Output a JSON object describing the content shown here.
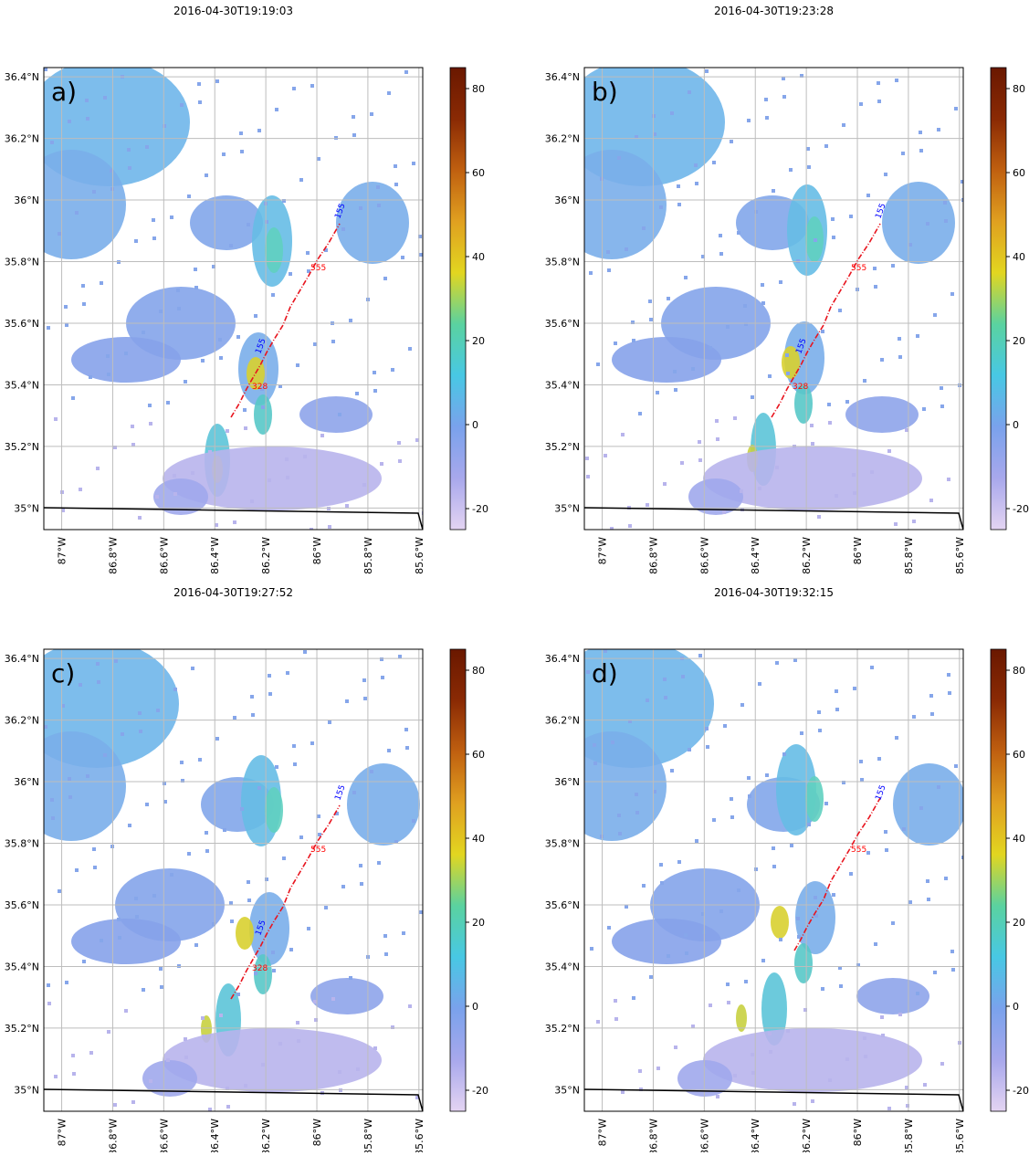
{
  "panels": [
    {
      "title": "2016-04-30T19:19:03",
      "label": "a)",
      "annotations": [
        {
          "text": "155",
          "color": "#0000ff"
        },
        {
          "text": "555",
          "color": "#ff0000"
        },
        {
          "text": "155",
          "color": "#0000ff"
        },
        {
          "text": "328",
          "color": "#ff0000"
        }
      ]
    },
    {
      "title": "2016-04-30T19:23:28",
      "label": "b)",
      "annotations": [
        {
          "text": "155",
          "color": "#0000ff"
        },
        {
          "text": "555",
          "color": "#ff0000"
        },
        {
          "text": "155",
          "color": "#0000ff"
        },
        {
          "text": "328",
          "color": "#ff0000"
        }
      ]
    },
    {
      "title": "2016-04-30T19:27:52",
      "label": "c)",
      "annotations": [
        {
          "text": "155",
          "color": "#0000ff"
        },
        {
          "text": "555",
          "color": "#ff0000"
        },
        {
          "text": "155",
          "color": "#0000ff"
        },
        {
          "text": "328",
          "color": "#ff0000"
        }
      ]
    },
    {
      "title": "2016-04-30T19:32:15",
      "label": "d)",
      "annotations": [
        {
          "text": "155",
          "color": "#0000ff"
        },
        {
          "text": "555",
          "color": "#ff0000"
        }
      ]
    }
  ],
  "map": {
    "lat_range": [
      34.93,
      36.43
    ],
    "lon_range": [
      -87.07,
      -85.585
    ],
    "lat_ticks": [
      {
        "value": 35.0,
        "label": "35°N"
      },
      {
        "value": 35.2,
        "label": "35.2°N"
      },
      {
        "value": 35.4,
        "label": "35.4°N"
      },
      {
        "value": 35.6,
        "label": "35.6°N"
      },
      {
        "value": 35.8,
        "label": "35.8°N"
      },
      {
        "value": 36.0,
        "label": "36°N"
      },
      {
        "value": 36.2,
        "label": "36.2°N"
      },
      {
        "value": 36.4,
        "label": "36.4°N"
      }
    ],
    "lon_ticks": [
      {
        "value": -87.0,
        "label": "87°W"
      },
      {
        "value": -86.8,
        "label": "86.8°W"
      },
      {
        "value": -86.6,
        "label": "86.6°W"
      },
      {
        "value": -86.4,
        "label": "86.4°W"
      },
      {
        "value": -86.2,
        "label": "86.2°W"
      },
      {
        "value": -86.0,
        "label": "86°W"
      },
      {
        "value": -85.8,
        "label": "85.8°W"
      },
      {
        "value": -85.6,
        "label": "85.6°W"
      }
    ]
  },
  "colorbar": {
    "range": [
      -25,
      85
    ],
    "ticks": [
      -20,
      0,
      20,
      40,
      60,
      80
    ],
    "colors": [
      "#e4d4f2",
      "#a8a8ec",
      "#7aa2ec",
      "#48c8e4",
      "#5ad2a0",
      "#e2d620",
      "#e0a020",
      "#c06010",
      "#8a2a04",
      "#6a1800"
    ]
  }
}
